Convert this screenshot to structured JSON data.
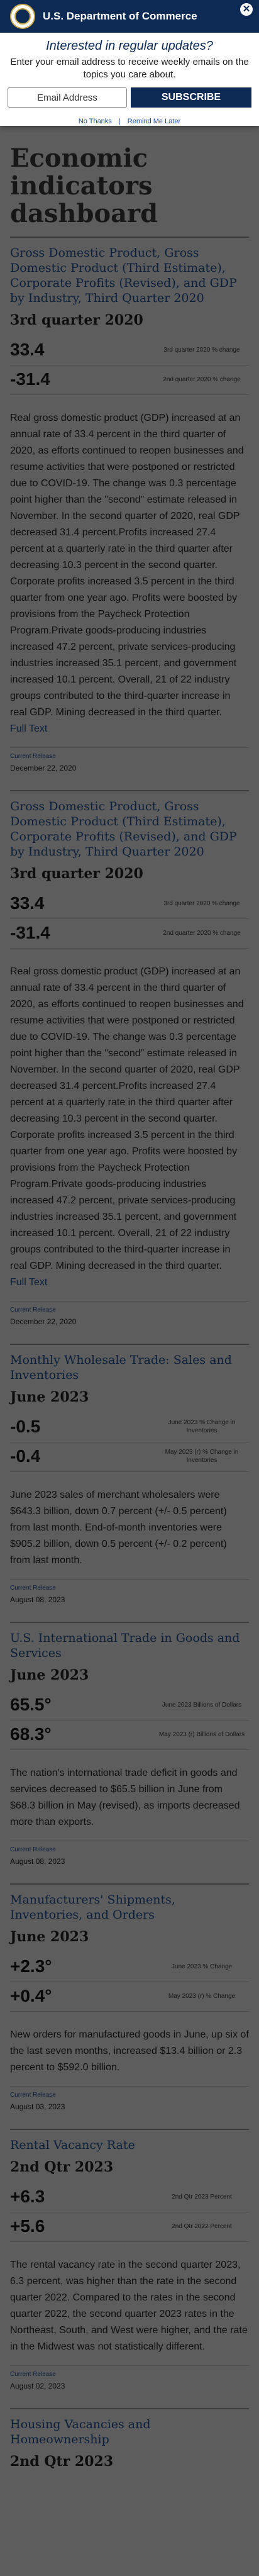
{
  "modal": {
    "agency_name": "U.S. Department of Commerce",
    "close_glyph": "✕",
    "title": "Interested in regular updates?",
    "subtitle": "Enter your email address to receive weekly emails on the topics you care about.",
    "email_placeholder": "Email Address",
    "subscribe_label": "SUBSCRIBE",
    "no_thanks_label": "No Thanks",
    "remind_label": "Remind Me Later",
    "colors": {
      "brand": "#0d2a55",
      "seal_gold": "#c8a84a"
    }
  },
  "page": {
    "title": "Economic indicators dashboard",
    "full_text_label": "Full Text",
    "release_label": "Current Release"
  },
  "sections": [
    {
      "title": "Gross Domestic Product, Gross Domestic Product (Third Estimate), Corporate Profits (Revised), and GDP by Industry, Third Quarter 2020",
      "period": "3rd quarter 2020",
      "stats": [
        {
          "value": "33.4",
          "label": "3rd quarter 2020 % change"
        },
        {
          "value": "-31.4",
          "label": "2nd quarter 2020 % change"
        }
      ],
      "description": "Real gross domestic product (GDP) increased at an annual rate of 33.4 percent in the third quarter of 2020, as efforts continued to reopen businesses and resume activities that were postponed or restricted due to COVID-19. The change was 0.3 percentage point higher than the \"second\" estimate released in November. In the second quarter of 2020, real GDP decreased 31.4 percent.Profits increased 27.4 percent at a quarterly rate in the third quarter after decreasing 10.3 percent in the second quarter. Corporate profits increased 3.5 percent in the third quarter from one year ago. Profits were boosted by provisions from the Paycheck Protection Program.Private goods-producing industries increased 47.2 percent, private services-producing industries increased 35.1 percent, and government increased 10.1 percent. Overall, 21 of 22 industry groups contributed to the third-quarter increase in real GDP. Mining decreased in the third quarter.",
      "has_full_text": true,
      "release_date": "December 22, 2020"
    },
    {
      "title": "Gross Domestic Product, Gross Domestic Product (Third Estimate), Corporate Profits (Revised), and GDP by Industry, Third Quarter 2020",
      "period": "3rd quarter 2020",
      "stats": [
        {
          "value": "33.4",
          "label": "3rd quarter 2020 % change"
        },
        {
          "value": "-31.4",
          "label": "2nd quarter 2020 % change"
        }
      ],
      "description": "Real gross domestic product (GDP) increased at an annual rate of 33.4 percent in the third quarter of 2020, as efforts continued to reopen businesses and resume activities that were postponed or restricted due to COVID-19. The change was 0.3 percentage point higher than the \"second\" estimate released in November. In the second quarter of 2020, real GDP decreased 31.4 percent.Profits increased 27.4 percent at a quarterly rate in the third quarter after decreasing 10.3 percent in the second quarter. Corporate profits increased 3.5 percent in the third quarter from one year ago. Profits were boosted by provisions from the Paycheck Protection Program.Private goods-producing industries increased 47.2 percent, private services-producing industries increased 35.1 percent, and government increased 10.1 percent. Overall, 21 of 22 industry groups contributed to the third-quarter increase in real GDP. Mining decreased in the third quarter.",
      "has_full_text": true,
      "release_date": "December 22, 2020"
    },
    {
      "title": "Monthly Wholesale Trade: Sales and Inventories",
      "period": "June 2023",
      "stats": [
        {
          "value": "-0.5",
          "label": "June 2023 % Change in Inventories"
        },
        {
          "value": "-0.4",
          "label": "May 2023 (r) % Change in Inventories"
        }
      ],
      "description": "June 2023 sales of merchant wholesalers were $643.3 billion, down 0.7 percent (+/- 0.5 percent) from last month. End-of-month inventories were $905.2 billion, down 0.5 percent (+/- 0.2 percent) from last month.",
      "has_full_text": false,
      "release_date": "August 08, 2023"
    },
    {
      "title": "U.S. International Trade in Goods and Services",
      "period": "June 2023",
      "stats": [
        {
          "value": "65.5°",
          "label": "June 2023 Billions of Dollars"
        },
        {
          "value": "68.3°",
          "label": "May 2023 (r) Billions of Dollars"
        }
      ],
      "description": "The nation's international trade deficit in goods and services decreased to $65.5 billion in June from $68.3 billion in May (revised), as imports decreased more than exports.",
      "has_full_text": false,
      "release_date": "August 08, 2023"
    },
    {
      "title": "Manufacturers' Shipments, Inventories, and Orders",
      "period": "June 2023",
      "stats": [
        {
          "value": "+2.3°",
          "label": "June 2023 % Change"
        },
        {
          "value": "+0.4°",
          "label": "May 2023 (r) % Change"
        }
      ],
      "description": "New orders for manufactured goods in June, up six of the last seven months, increased $13.4 billion or 2.3 percent to $592.0 billion.",
      "has_full_text": false,
      "release_date": "August 03, 2023"
    },
    {
      "title": "Rental Vacancy Rate",
      "period": "2nd Qtr 2023",
      "stats": [
        {
          "value": "+6.3",
          "label": "2nd Qtr 2023 Percent"
        },
        {
          "value": "+5.6",
          "label": "2nd Qtr 2022 Percent"
        }
      ],
      "description": "The rental vacancy rate in the second quarter 2023, 6.3 percent, was higher than the rate in the second quarter 2022. Compared to the rates in the second quarter 2022, the second quarter 2023 rates in the Northeast, South, and West were higher, and the rate in the Midwest was not statistically different.",
      "has_full_text": false,
      "release_date": "August 02, 2023"
    },
    {
      "title": "Housing Vacancies and Homeownership",
      "period": "2nd Qtr 2023",
      "stats": [],
      "description": "",
      "has_full_text": false,
      "release_date": ""
    }
  ]
}
